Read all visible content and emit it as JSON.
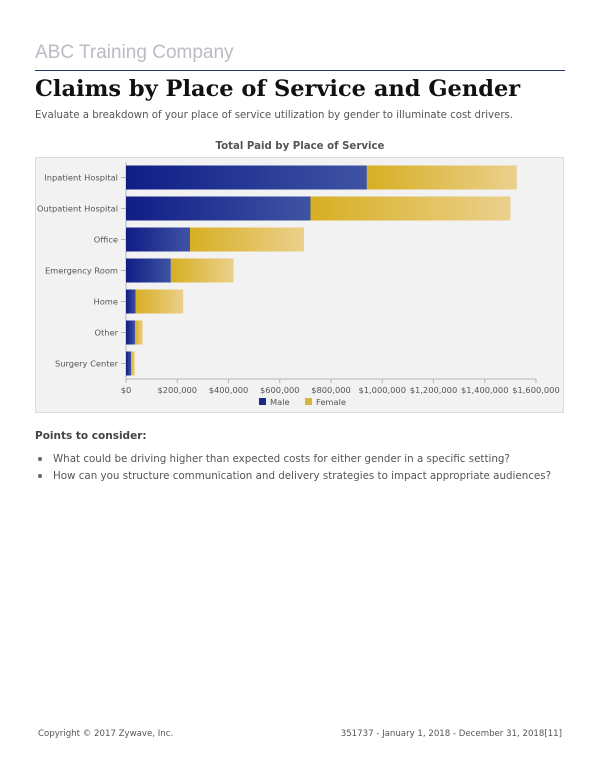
{
  "header": {
    "company": "ABC Training Company",
    "title": "Claims by Place of Service and Gender",
    "subtitle": "Evaluate a breakdown of your place of service utilization by gender to illuminate cost drivers."
  },
  "chart_data": {
    "type": "bar",
    "orientation": "horizontal",
    "stacked": true,
    "title": "Total Paid by Place of Service",
    "categories": [
      "Inpatient Hospital",
      "Outpatient Hospital",
      "Office",
      "Emergency Room",
      "Home",
      "Other",
      "Surgery Center"
    ],
    "series": [
      {
        "name": "Male",
        "color": "#1a2a8a",
        "values": [
          940000,
          720000,
          250000,
          175000,
          38000,
          35000,
          20000
        ]
      },
      {
        "name": "Female",
        "color": "#d9b53a",
        "values": [
          585000,
          780000,
          445000,
          245000,
          185000,
          30000,
          14000
        ]
      }
    ],
    "xlim": [
      0,
      1600000
    ],
    "xticks": [
      "$0",
      "$200,000",
      "$400,000",
      "$600,000",
      "$800,000",
      "$1,000,000",
      "$1,200,000",
      "$1,400,000",
      "$1,600,000"
    ],
    "xtick_values": [
      0,
      200000,
      400000,
      600000,
      800000,
      1000000,
      1200000,
      1400000,
      1600000
    ],
    "legend": "bottom-center",
    "grid": false
  },
  "points": {
    "heading": "Points to consider:",
    "items": [
      "What could be driving higher than expected costs for either gender in a specific setting?",
      "How can you structure communication and delivery strategies to impact appropriate audiences?"
    ]
  },
  "footer": {
    "copyright": "Copyright © 2017 Zywave, Inc.",
    "report_info": "351737 - January 1, 2018 - December 31, 2018[11]"
  }
}
